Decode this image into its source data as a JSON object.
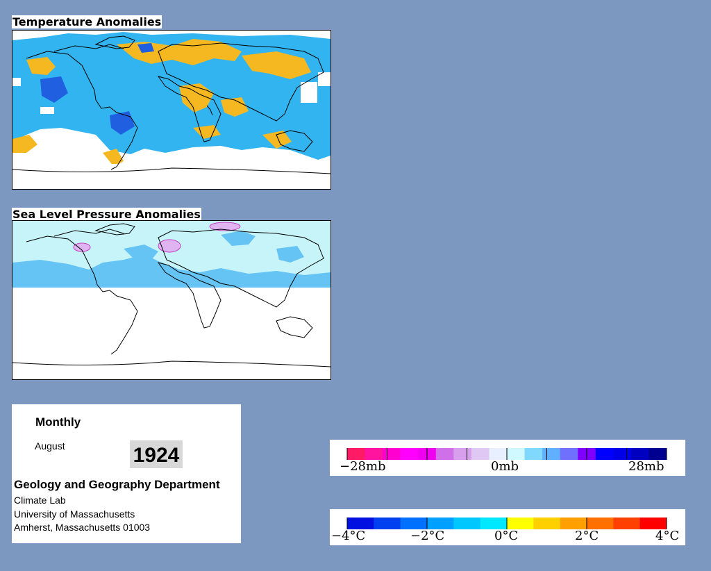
{
  "maps": {
    "temperature_title": "Temperature Anomalies",
    "pressure_title": "Sea Level Pressure Anomalies"
  },
  "info": {
    "period": "Monthly",
    "month": "August",
    "year": "1924",
    "department": "Geology and Geography Department",
    "lab": "Climate Lab",
    "university": "University of Massachusetts",
    "address": "Amherst, Massachusetts 01003"
  },
  "pressure_legend": {
    "labels": [
      "−28mb",
      "0mb",
      "28mb"
    ],
    "colors": [
      "#ff1a66",
      "#ff14a0",
      "#ff00d0",
      "#ff00ff",
      "#f000f0",
      "#d070e8",
      "#d8a0ec",
      "#e0c8f4",
      "#e8f0ff",
      "#d0f8ff",
      "#80d8ff",
      "#60b0ff",
      "#7070ff",
      "#8000ff",
      "#0000ff",
      "#0000e8",
      "#0000c0",
      "#000090"
    ]
  },
  "temperature_legend": {
    "labels": [
      "−4°C",
      "−2°C",
      "0°C",
      "2°C",
      "4°C"
    ],
    "colors": [
      "#0010e0",
      "#0040f0",
      "#0070ff",
      "#00a0ff",
      "#00c8ff",
      "#00e8ff",
      "#ffff00",
      "#ffd000",
      "#ffa000",
      "#ff7000",
      "#ff4000",
      "#ff0000"
    ]
  },
  "colors": {
    "background": "#7c98c0",
    "temp_cold": "#32b4f0",
    "temp_cold_deep": "#2060e0",
    "temp_warm": "#f5b820",
    "pressure_low": "#c6f4f8",
    "pressure_high": "#66c4f4",
    "pressure_pink": "#e0b4f0"
  }
}
